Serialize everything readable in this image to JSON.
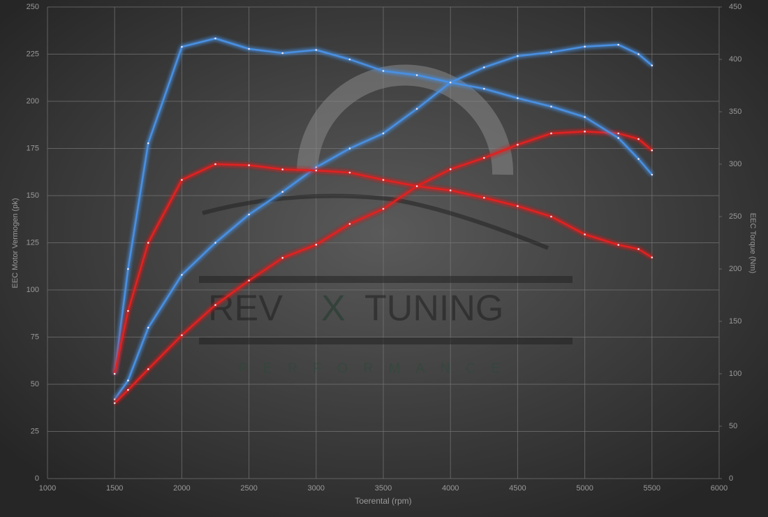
{
  "chart_data": {
    "type": "line",
    "xlabel": "Toerental (rpm)",
    "ylabel": "EEC Motor Vermogen (pk)",
    "y2label": "EEC Torque (Nm)",
    "watermark": {
      "left": "REV",
      "mid": "X",
      "right": "TUNING",
      "sub": "PERFORMANCE"
    },
    "x": [
      1500,
      1600,
      1750,
      2000,
      2250,
      2500,
      2750,
      3000,
      3250,
      3500,
      3750,
      4000,
      4250,
      4500,
      4750,
      5000,
      5250,
      5400,
      5500
    ],
    "series": [
      {
        "color": "#4a90e2",
        "values": [
          42,
          52,
          80,
          108,
          125,
          140,
          152,
          165,
          175,
          183,
          196,
          210,
          218,
          224,
          226,
          229,
          230,
          225,
          219
        ]
      },
      {
        "color": "#e02424",
        "values": [
          40,
          47,
          58,
          76,
          92,
          105,
          117,
          124,
          135,
          143,
          155,
          164,
          170,
          177,
          183,
          184,
          183,
          180,
          174
        ]
      },
      {
        "color": "#4a90e2",
        "axis": "y2",
        "values": [
          100,
          200,
          320,
          412,
          420,
          410,
          406,
          409,
          400,
          389,
          385,
          378,
          372,
          363,
          355,
          345,
          325,
          305,
          290
        ]
      },
      {
        "color": "#e02424",
        "axis": "y2",
        "values": [
          100,
          160,
          225,
          285,
          300,
          299,
          295,
          294,
          292,
          285,
          279,
          275,
          268,
          260,
          250,
          233,
          223,
          219,
          211
        ]
      }
    ],
    "xlim": [
      1000,
      6000
    ],
    "xticks": [
      1000,
      1500,
      2000,
      2500,
      3000,
      3500,
      4000,
      4500,
      5000,
      5500,
      6000
    ],
    "ylim": [
      0,
      250
    ],
    "yticks": [
      0,
      25,
      50,
      75,
      100,
      125,
      150,
      175,
      200,
      225,
      250
    ],
    "y2lim": [
      0,
      450
    ],
    "y2ticks": [
      0,
      50,
      100,
      150,
      200,
      250,
      300,
      350,
      400,
      450
    ],
    "grid": true
  }
}
